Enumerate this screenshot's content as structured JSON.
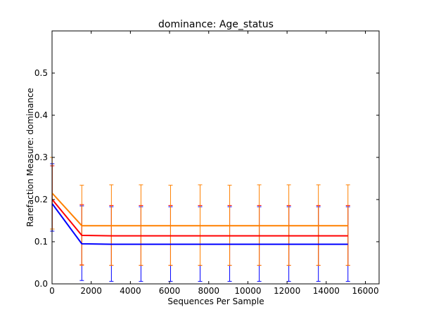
{
  "chart_data": {
    "type": "line",
    "title": "dominance: Age_status",
    "xlabel": "Sequences Per Sample",
    "ylabel": "Rarefaction Measure: dominance",
    "xlim": [
      0,
      16700
    ],
    "ylim": [
      0.0,
      0.6
    ],
    "xticks": [
      0,
      2000,
      4000,
      6000,
      8000,
      10000,
      12000,
      14000,
      16000
    ],
    "xtick_labels": [
      "0",
      "2000",
      "4000",
      "6000",
      "8000",
      "10000",
      "12000",
      "14000",
      "16000"
    ],
    "yticks": [
      0.0,
      0.1,
      0.2,
      0.3,
      0.4,
      0.5
    ],
    "ytick_labels": [
      "0.0",
      "0.1",
      "0.2",
      "0.3",
      "0.4",
      "0.5"
    ],
    "grid": false,
    "legend": "none",
    "x": [
      10,
      1520,
      3030,
      4540,
      6050,
      7560,
      9070,
      10580,
      12090,
      13600,
      15110
    ],
    "series": [
      {
        "color": "#0000ff",
        "values": [
          0.19,
          0.095,
          0.094,
          0.094,
          0.094,
          0.094,
          0.094,
          0.094,
          0.094,
          0.094,
          0.094
        ],
        "error_low": [
          0.125,
          0.008,
          0.006,
          0.006,
          0.006,
          0.006,
          0.006,
          0.006,
          0.006,
          0.006,
          0.006
        ],
        "error_high": [
          0.285,
          0.185,
          0.183,
          0.183,
          0.183,
          0.183,
          0.183,
          0.183,
          0.183,
          0.183,
          0.183
        ]
      },
      {
        "color": "#ff0000",
        "values": [
          0.2,
          0.115,
          0.114,
          0.114,
          0.114,
          0.114,
          0.114,
          0.114,
          0.114,
          0.114,
          0.114
        ],
        "error_low": [
          0.13,
          0.045,
          0.044,
          0.044,
          0.044,
          0.044,
          0.044,
          0.044,
          0.044,
          0.044,
          0.044
        ],
        "error_high": [
          0.28,
          0.188,
          0.186,
          0.186,
          0.186,
          0.186,
          0.186,
          0.186,
          0.186,
          0.186,
          0.186
        ]
      },
      {
        "color": "#ff8000",
        "values": [
          0.215,
          0.138,
          0.138,
          0.138,
          0.138,
          0.138,
          0.138,
          0.138,
          0.138,
          0.138,
          0.138
        ],
        "error_low": [
          0.13,
          0.044,
          0.044,
          0.044,
          0.044,
          0.044,
          0.044,
          0.044,
          0.044,
          0.044,
          0.044
        ],
        "error_high": [
          0.3,
          0.234,
          0.235,
          0.235,
          0.234,
          0.235,
          0.234,
          0.235,
          0.235,
          0.235,
          0.235
        ]
      }
    ]
  }
}
